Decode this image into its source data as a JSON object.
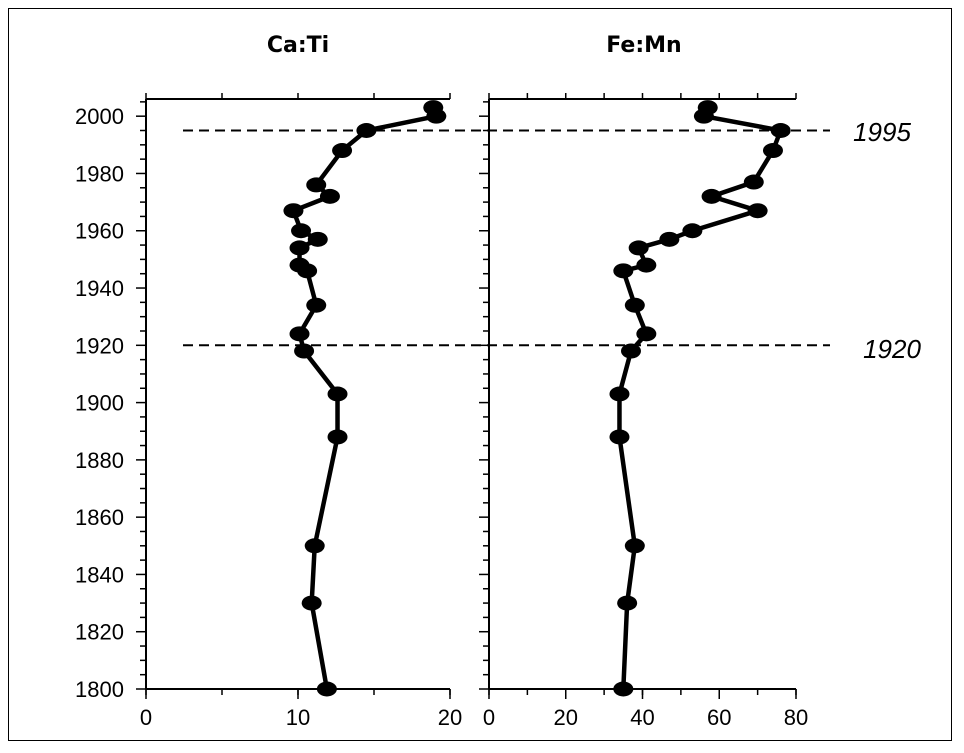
{
  "chart_data": [
    {
      "type": "line",
      "title": "Ca:Ti",
      "xlim": [
        0,
        20
      ],
      "ylim": [
        1800,
        2006
      ],
      "x_ticks": [
        0,
        10,
        20
      ],
      "y_ticks": [
        1800,
        1820,
        1840,
        1860,
        1880,
        1900,
        1920,
        1940,
        1960,
        1980,
        2000
      ],
      "series": [
        {
          "x": [
            18.9,
            19.1,
            14.5,
            12.9,
            11.2,
            12.1,
            9.7,
            10.2,
            11.3,
            10.1,
            10.1,
            10.6,
            11.2,
            10.1,
            10.4,
            12.6,
            12.6,
            11.1,
            10.9,
            11.9
          ],
          "y": [
            2003,
            2000,
            1995,
            1988,
            1976,
            1972,
            1967,
            1960,
            1957,
            1954,
            1948,
            1946,
            1934,
            1924,
            1918,
            1903,
            1888,
            1850,
            1830,
            1800
          ]
        }
      ]
    },
    {
      "type": "line",
      "title": "Fe:Mn",
      "xlim": [
        0,
        80
      ],
      "ylim": [
        1800,
        2006
      ],
      "x_ticks": [
        0,
        20,
        40,
        60,
        80
      ],
      "series": [
        {
          "x": [
            57,
            56,
            76,
            74,
            69,
            58,
            70,
            53,
            47,
            39,
            41,
            35,
            38,
            41,
            37,
            34,
            34,
            38,
            36,
            35
          ],
          "y": [
            2003,
            2000,
            1995,
            1988,
            1977,
            1972,
            1967,
            1960,
            1957,
            1954,
            1948,
            1946,
            1934,
            1924,
            1918,
            1903,
            1888,
            1850,
            1830,
            1800
          ]
        }
      ]
    }
  ],
  "reference_lines": [
    {
      "year": 1995,
      "label": "1995"
    },
    {
      "year": 1920,
      "label": "1920"
    }
  ]
}
